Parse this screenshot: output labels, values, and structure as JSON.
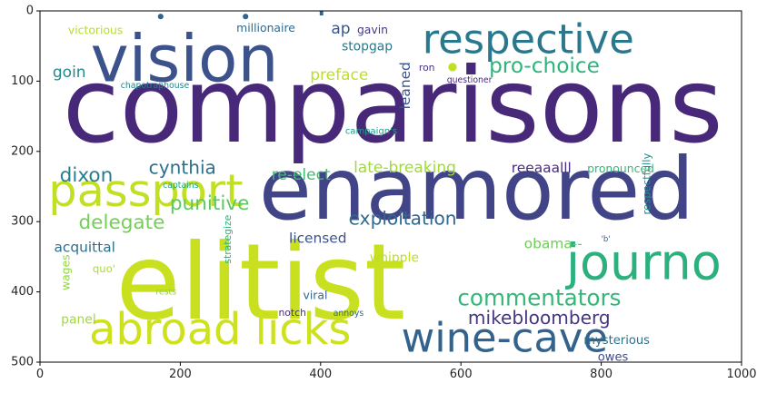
{
  "chart_data": {
    "type": "wordcloud",
    "title": "",
    "xlabel": "",
    "ylabel": "",
    "xlim": [
      0,
      1000
    ],
    "ylim": [
      500,
      0
    ],
    "xticks": [
      0,
      200,
      400,
      600,
      800,
      1000
    ],
    "yticks": [
      0,
      100,
      200,
      300,
      400,
      500
    ],
    "grid": false,
    "words": [
      {
        "text": "comparisons",
        "x": 32,
        "y": 186,
        "size": 148,
        "color": "#482878"
      },
      {
        "text": "elitist",
        "x": 108,
        "y": 438,
        "size": 150,
        "color": "#c8e020"
      },
      {
        "text": "enamored",
        "x": 312,
        "y": 296,
        "size": 122,
        "color": "#414487"
      },
      {
        "text": "vision",
        "x": 72,
        "y": 100,
        "size": 92,
        "color": "#3b528b"
      },
      {
        "text": "respective",
        "x": 545,
        "y": 60,
        "size": 58,
        "color": "#2a788e"
      },
      {
        "text": "passport",
        "x": 12,
        "y": 278,
        "size": 64,
        "color": "#c2df23"
      },
      {
        "text": "journo",
        "x": 750,
        "y": 382,
        "size": 70,
        "color": "#2cb17e"
      },
      {
        "text": "abroad licks",
        "x": 70,
        "y": 474,
        "size": 62,
        "color": "#cde11d"
      },
      {
        "text": "wine-cave",
        "x": 515,
        "y": 485,
        "size": 58,
        "color": "#33638d"
      },
      {
        "text": "commentators",
        "x": 595,
        "y": 419,
        "size": 32,
        "color": "#35b779"
      },
      {
        "text": "mikebloomberg",
        "x": 610,
        "y": 446,
        "size": 26,
        "color": "#453781"
      },
      {
        "text": "pro-choice",
        "x": 640,
        "y": 88,
        "size": 30,
        "color": "#2eb37c"
      },
      {
        "text": "delegate",
        "x": 55,
        "y": 310,
        "size": 28,
        "color": "#73d055"
      },
      {
        "text": "punitive",
        "x": 185,
        "y": 283,
        "size": 28,
        "color": "#5cc863"
      },
      {
        "text": "exploitation",
        "x": 440,
        "y": 304,
        "size": 26,
        "color": "#31688e"
      },
      {
        "text": "cynthia",
        "x": 155,
        "y": 232,
        "size": 26,
        "color": "#2d708e"
      },
      {
        "text": "dixon",
        "x": 28,
        "y": 243,
        "size": 28,
        "color": "#287d8e"
      },
      {
        "text": "re-elect",
        "x": 330,
        "y": 240,
        "size": 22,
        "color": "#3fbc73"
      },
      {
        "text": "late-breaking",
        "x": 447,
        "y": 230,
        "size": 22,
        "color": "#a0da39"
      },
      {
        "text": "reeaaalll",
        "x": 672,
        "y": 230,
        "size": 20,
        "color": "#472d7b"
      },
      {
        "text": "pronounced",
        "x": 780,
        "y": 230,
        "size": 16,
        "color": "#35b779"
      },
      {
        "text": "preface",
        "x": 385,
        "y": 98,
        "size": 22,
        "color": "#bddf26"
      },
      {
        "text": "goin",
        "x": 18,
        "y": 94,
        "size": 22,
        "color": "#23888e"
      },
      {
        "text": "ap",
        "x": 415,
        "y": 32,
        "size": 22,
        "color": "#39568c"
      },
      {
        "text": "gavin",
        "x": 452,
        "y": 32,
        "size": 16,
        "color": "#443a83"
      },
      {
        "text": "stopgap",
        "x": 430,
        "y": 56,
        "size": 18,
        "color": "#2a788e"
      },
      {
        "text": "ron",
        "x": 540,
        "y": 85,
        "size": 14,
        "color": "#46337e"
      },
      {
        "text": "questioner",
        "x": 580,
        "y": 102,
        "size": 12,
        "color": "#472a7a"
      },
      {
        "text": "leaned",
        "x": 527,
        "y": 140,
        "size": 20,
        "color": "#3b528b",
        "rotate": true
      },
      {
        "text": "campaign's",
        "x": 435,
        "y": 175,
        "size": 13,
        "color": "#1f9f88"
      },
      {
        "text": "chapotraphouse",
        "x": 115,
        "y": 110,
        "size": 12,
        "color": "#26828e"
      },
      {
        "text": "captains",
        "x": 175,
        "y": 252,
        "size": 12,
        "color": "#22a785"
      },
      {
        "text": "victorious",
        "x": 40,
        "y": 33,
        "size": 16,
        "color": "#b5de2b"
      },
      {
        "text": "millionaire",
        "x": 280,
        "y": 30,
        "size": 16,
        "color": "#31688e"
      },
      {
        "text": "licensed",
        "x": 355,
        "y": 330,
        "size": 20,
        "color": "#3b528b"
      },
      {
        "text": "acquittal",
        "x": 20,
        "y": 343,
        "size": 20,
        "color": "#2e6e8e"
      },
      {
        "text": "obama--",
        "x": 690,
        "y": 338,
        "size": 20,
        "color": "#6ece58"
      },
      {
        "text": "respectfully",
        "x": 870,
        "y": 290,
        "size": 15,
        "color": "#21918c",
        "rotate": true
      },
      {
        "text": "'b'",
        "x": 800,
        "y": 328,
        "size": 11,
        "color": "#365c8d"
      },
      {
        "text": "whipple",
        "x": 470,
        "y": 357,
        "size": 18,
        "color": "#bddf26"
      },
      {
        "text": "quo'",
        "x": 75,
        "y": 372,
        "size": 15,
        "color": "#a8db34"
      },
      {
        "text": "wages",
        "x": 42,
        "y": 398,
        "size": 16,
        "color": "#93d741",
        "rotate": true
      },
      {
        "text": "strategize",
        "x": 272,
        "y": 360,
        "size": 14,
        "color": "#2fb47c",
        "rotate": true
      },
      {
        "text": "rests",
        "x": 165,
        "y": 404,
        "size": 12,
        "color": "#8fd744"
      },
      {
        "text": "viral",
        "x": 375,
        "y": 410,
        "size": 16,
        "color": "#33638d"
      },
      {
        "text": "notch",
        "x": 340,
        "y": 434,
        "size": 14,
        "color": "#472f7d"
      },
      {
        "text": "annoys",
        "x": 418,
        "y": 434,
        "size": 12,
        "color": "#31688e"
      },
      {
        "text": "panel",
        "x": 30,
        "y": 445,
        "size": 18,
        "color": "#9fda3a"
      },
      {
        "text": "mysterious",
        "x": 775,
        "y": 474,
        "size": 17,
        "color": "#2e6f8e"
      },
      {
        "text": "owes",
        "x": 795,
        "y": 498,
        "size": 17,
        "color": "#3e4a89"
      }
    ],
    "marks": [
      {
        "text": "'",
        "x": 393,
        "y": 34,
        "size": 60,
        "color": "#33638d"
      },
      {
        "dot": true,
        "x": 172,
        "y": 8,
        "r": 4,
        "color": "#33638d"
      },
      {
        "dot": true,
        "x": 293,
        "y": 8,
        "r": 4,
        "color": "#33638d"
      },
      {
        "dot": true,
        "x": 588,
        "y": 80,
        "r": 6,
        "color": "#c2df23"
      }
    ]
  }
}
